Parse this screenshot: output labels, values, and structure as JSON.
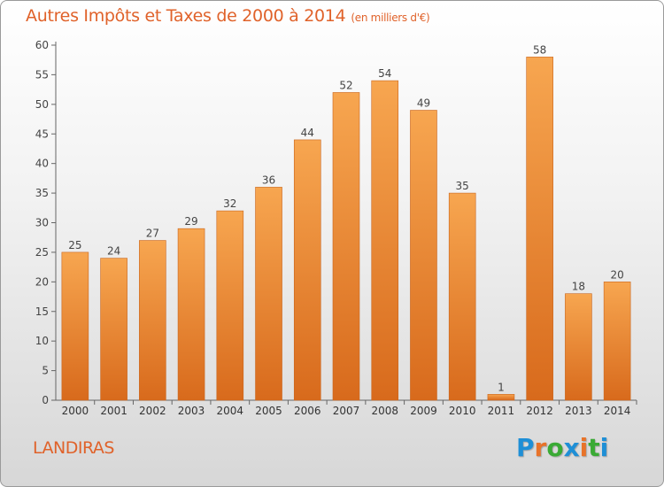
{
  "title": {
    "main": "Autres Impôts et Taxes de 2000 à 2014",
    "unit": "(en milliers d'€)"
  },
  "commune": "LANDIRAS",
  "logo": {
    "letters": [
      "P",
      "r",
      "o",
      "x",
      "i",
      "t",
      "i"
    ],
    "colors": [
      "#1f8fd6",
      "#e8732a",
      "#3aaa35",
      "#1f8fd6",
      "#e8732a",
      "#3aaa35",
      "#1f8fd6"
    ]
  },
  "colors": {
    "bar_light": "#f7a650",
    "bar_dark": "#d86a1c",
    "accent": "#e0622a"
  },
  "chart_data": {
    "type": "bar",
    "categories": [
      "2000",
      "2001",
      "2002",
      "2003",
      "2004",
      "2005",
      "2006",
      "2007",
      "2008",
      "2009",
      "2010",
      "2011",
      "2012",
      "2013",
      "2014"
    ],
    "values": [
      25,
      24,
      27,
      29,
      32,
      36,
      44,
      52,
      54,
      49,
      35,
      1,
      58,
      18,
      20
    ],
    "ylim": [
      0,
      60
    ],
    "yticks": [
      0,
      5,
      10,
      15,
      20,
      25,
      30,
      35,
      40,
      45,
      50,
      55,
      60
    ],
    "grid": false,
    "data_labels": true
  }
}
